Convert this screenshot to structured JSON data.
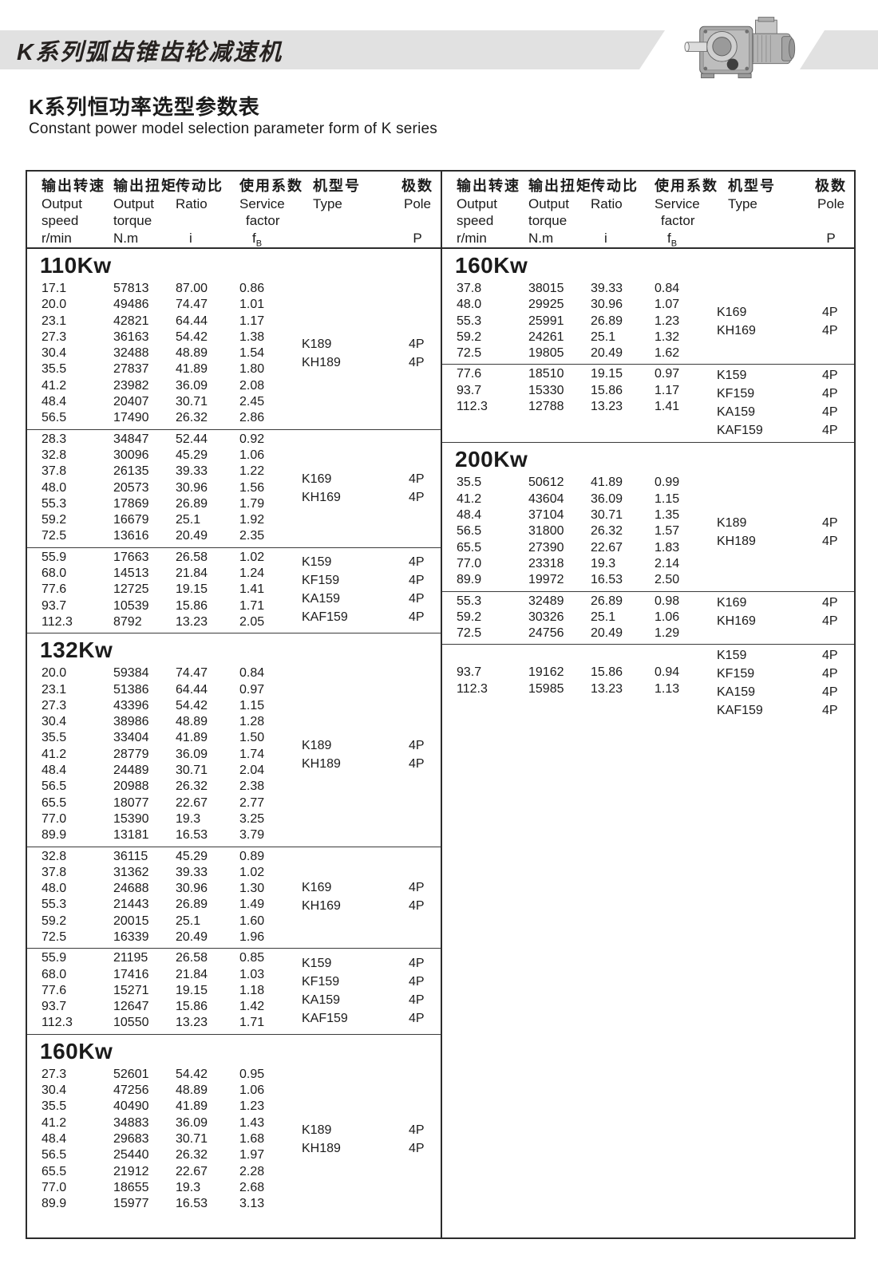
{
  "banner": {
    "title": "K系列弧齿锥齿轮减速机"
  },
  "page": {
    "title_zh": "K系列恒功率选型参数表",
    "title_en": "Constant power model selection parameter form of K series"
  },
  "table": {
    "header": {
      "speed": {
        "zh": "输出转速",
        "en1": "Output",
        "en2": "speed",
        "unit": "r/min"
      },
      "torque": {
        "zh": "输出扭矩",
        "en1": "Output",
        "en2": "torque",
        "unit": "N.m"
      },
      "ratio": {
        "zh": "传动比",
        "en1": "Ratio",
        "en2": "",
        "unit": "i"
      },
      "factor": {
        "zh": "使用系数",
        "en1": "Service",
        "en2": "factor",
        "unit": "f",
        "unit_sub": "B"
      },
      "type": {
        "zh": "机型号",
        "en1": "Type",
        "en2": "",
        "unit": ""
      },
      "pole": {
        "zh": "极数",
        "en1": "Pole",
        "en2": "",
        "unit": "P"
      }
    },
    "left_column": [
      {
        "power": "110Kw",
        "blocks": [
          {
            "rows": [
              [
                "17.1",
                "57813",
                "87.00",
                "0.86"
              ],
              [
                "20.0",
                "49486",
                "74.47",
                "1.01"
              ],
              [
                "23.1",
                "42821",
                "64.44",
                "1.17"
              ],
              [
                "27.3",
                "36163",
                "54.42",
                "1.38"
              ],
              [
                "30.4",
                "32488",
                "48.89",
                "1.54"
              ],
              [
                "35.5",
                "27837",
                "41.89",
                "1.80"
              ],
              [
                "41.2",
                "23982",
                "36.09",
                "2.08"
              ],
              [
                "48.4",
                "20407",
                "30.71",
                "2.45"
              ],
              [
                "56.5",
                "17490",
                "26.32",
                "2.86"
              ]
            ],
            "types": [
              {
                "name": "K189",
                "pole": "4P"
              },
              {
                "name": "KH189",
                "pole": "4P"
              }
            ]
          },
          {
            "rows": [
              [
                "28.3",
                "34847",
                "52.44",
                "0.92"
              ],
              [
                "32.8",
                "30096",
                "45.29",
                "1.06"
              ],
              [
                "37.8",
                "26135",
                "39.33",
                "1.22"
              ],
              [
                "48.0",
                "20573",
                "30.96",
                "1.56"
              ],
              [
                "55.3",
                "17869",
                "26.89",
                "1.79"
              ],
              [
                "59.2",
                "16679",
                "25.1",
                "1.92"
              ],
              [
                "72.5",
                "13616",
                "20.49",
                "2.35"
              ]
            ],
            "types": [
              {
                "name": "K169",
                "pole": "4P"
              },
              {
                "name": "KH169",
                "pole": "4P"
              }
            ]
          },
          {
            "rows": [
              [
                "55.9",
                "17663",
                "26.58",
                "1.02"
              ],
              [
                "68.0",
                "14513",
                "21.84",
                "1.24"
              ],
              [
                "77.6",
                "12725",
                "19.15",
                "1.41"
              ],
              [
                "93.7",
                "10539",
                "15.86",
                "1.71"
              ],
              [
                "112.3",
                "8792",
                "13.23",
                "2.05"
              ]
            ],
            "types": [
              {
                "name": "K159",
                "pole": "4P"
              },
              {
                "name": "KF159",
                "pole": "4P"
              },
              {
                "name": "KA159",
                "pole": "4P"
              },
              {
                "name": "KAF159",
                "pole": "4P"
              }
            ]
          }
        ]
      },
      {
        "power": "132Kw",
        "blocks": [
          {
            "rows": [
              [
                "20.0",
                "59384",
                "74.47",
                "0.84"
              ],
              [
                "23.1",
                "51386",
                "64.44",
                "0.97"
              ],
              [
                "27.3",
                "43396",
                "54.42",
                "1.15"
              ],
              [
                "30.4",
                "38986",
                "48.89",
                "1.28"
              ],
              [
                "35.5",
                "33404",
                "41.89",
                "1.50"
              ],
              [
                "41.2",
                "28779",
                "36.09",
                "1.74"
              ],
              [
                "48.4",
                "24489",
                "30.71",
                "2.04"
              ],
              [
                "56.5",
                "20988",
                "26.32",
                "2.38"
              ],
              [
                "65.5",
                "18077",
                "22.67",
                "2.77"
              ],
              [
                "77.0",
                "15390",
                "19.3",
                "3.25"
              ],
              [
                "89.9",
                "13181",
                "16.53",
                "3.79"
              ]
            ],
            "types": [
              {
                "name": "K189",
                "pole": "4P"
              },
              {
                "name": "KH189",
                "pole": "4P"
              }
            ]
          },
          {
            "rows": [
              [
                "32.8",
                "36115",
                "45.29",
                "0.89"
              ],
              [
                "37.8",
                "31362",
                "39.33",
                "1.02"
              ],
              [
                "48.0",
                "24688",
                "30.96",
                "1.30"
              ],
              [
                "55.3",
                "21443",
                "26.89",
                "1.49"
              ],
              [
                "59.2",
                "20015",
                "25.1",
                "1.60"
              ],
              [
                "72.5",
                "16339",
                "20.49",
                "1.96"
              ]
            ],
            "types": [
              {
                "name": "K169",
                "pole": "4P"
              },
              {
                "name": "KH169",
                "pole": "4P"
              }
            ]
          },
          {
            "rows": [
              [
                "55.9",
                "21195",
                "26.58",
                "0.85"
              ],
              [
                "68.0",
                "17416",
                "21.84",
                "1.03"
              ],
              [
                "77.6",
                "15271",
                "19.15",
                "1.18"
              ],
              [
                "93.7",
                "12647",
                "15.86",
                "1.42"
              ],
              [
                "112.3",
                "10550",
                "13.23",
                "1.71"
              ]
            ],
            "types": [
              {
                "name": "K159",
                "pole": "4P"
              },
              {
                "name": "KF159",
                "pole": "4P"
              },
              {
                "name": "KA159",
                "pole": "4P"
              },
              {
                "name": "KAF159",
                "pole": "4P"
              }
            ]
          }
        ]
      },
      {
        "power": "160Kw",
        "blocks": [
          {
            "rows": [
              [
                "27.3",
                "52601",
                "54.42",
                "0.95"
              ],
              [
                "30.4",
                "47256",
                "48.89",
                "1.06"
              ],
              [
                "35.5",
                "40490",
                "41.89",
                "1.23"
              ],
              [
                "41.2",
                "34883",
                "36.09",
                "1.43"
              ],
              [
                "48.4",
                "29683",
                "30.71",
                "1.68"
              ],
              [
                "56.5",
                "25440",
                "26.32",
                "1.97"
              ],
              [
                "65.5",
                "21912",
                "22.67",
                "2.28"
              ],
              [
                "77.0",
                "18655",
                "19.3",
                "2.68"
              ],
              [
                "89.9",
                "15977",
                "16.53",
                "3.13"
              ]
            ],
            "types": [
              {
                "name": "K189",
                "pole": "4P"
              },
              {
                "name": "KH189",
                "pole": "4P"
              }
            ]
          }
        ]
      }
    ],
    "right_column": [
      {
        "power": "160Kw",
        "blocks": [
          {
            "rows": [
              [
                "37.8",
                "38015",
                "39.33",
                "0.84"
              ],
              [
                "48.0",
                "29925",
                "30.96",
                "1.07"
              ],
              [
                "55.3",
                "25991",
                "26.89",
                "1.23"
              ],
              [
                "59.2",
                "24261",
                "25.1",
                "1.32"
              ],
              [
                "72.5",
                "19805",
                "20.49",
                "1.62"
              ]
            ],
            "types": [
              {
                "name": "K169",
                "pole": "4P"
              },
              {
                "name": "KH169",
                "pole": "4P"
              }
            ]
          },
          {
            "rows": [
              [
                "77.6",
                "18510",
                "19.15",
                "0.97"
              ],
              [
                "93.7",
                "15330",
                "15.86",
                "1.17"
              ],
              [
                "112.3",
                "12788",
                "13.23",
                "1.41"
              ]
            ],
            "types": [
              {
                "name": "K159",
                "pole": "4P"
              },
              {
                "name": "KF159",
                "pole": "4P"
              },
              {
                "name": "KA159",
                "pole": "4P"
              },
              {
                "name": "KAF159",
                "pole": "4P"
              }
            ],
            "valign": "top"
          }
        ]
      },
      {
        "power": "200Kw",
        "blocks": [
          {
            "rows": [
              [
                "35.5",
                "50612",
                "41.89",
                "0.99"
              ],
              [
                "41.2",
                "43604",
                "36.09",
                "1.15"
              ],
              [
                "48.4",
                "37104",
                "30.71",
                "1.35"
              ],
              [
                "56.5",
                "31800",
                "26.32",
                "1.57"
              ],
              [
                "65.5",
                "27390",
                "22.67",
                "1.83"
              ],
              [
                "77.0",
                "23318",
                "19.3",
                "2.14"
              ],
              [
                "89.9",
                "19972",
                "16.53",
                "2.50"
              ]
            ],
            "types": [
              {
                "name": "K189",
                "pole": "4P"
              },
              {
                "name": "KH189",
                "pole": "4P"
              }
            ]
          },
          {
            "rows": [
              [
                "55.3",
                "32489",
                "26.89",
                "0.98"
              ],
              [
                "59.2",
                "30326",
                "25.1",
                "1.06"
              ],
              [
                "72.5",
                "24756",
                "20.49",
                "1.29"
              ]
            ],
            "types": [
              {
                "name": "K169",
                "pole": "4P"
              },
              {
                "name": "KH169",
                "pole": "4P"
              }
            ],
            "valign": "top"
          },
          {
            "rows": [
              [
                "93.7",
                "19162",
                "15.86",
                "0.94"
              ],
              [
                "112.3",
                "15985",
                "13.23",
                "1.13"
              ]
            ],
            "types": [
              {
                "name": "K159",
                "pole": "4P"
              },
              {
                "name": "KF159",
                "pole": "4P"
              },
              {
                "name": "KA159",
                "pole": "4P"
              },
              {
                "name": "KAF159",
                "pole": "4P"
              }
            ],
            "valign": "top",
            "row_offset": 1
          }
        ]
      }
    ]
  }
}
